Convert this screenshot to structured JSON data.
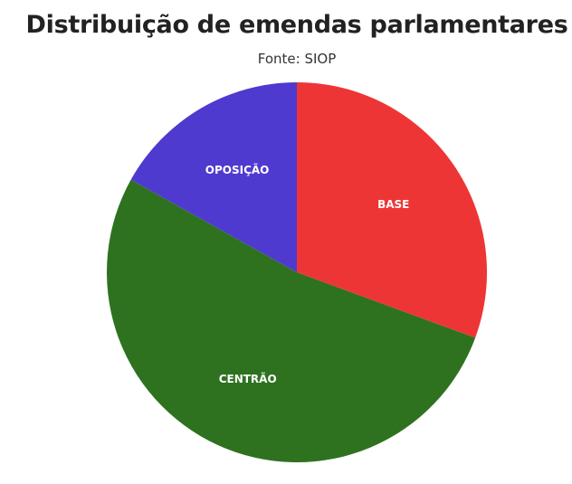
{
  "chart_data": {
    "type": "pie",
    "title": "Distribuição de emendas parlamentares",
    "subtitle": "Fonte: SIOP",
    "categories": [
      "BASE",
      "CENTRÃO",
      "OPOSIÇÃO"
    ],
    "values": [
      30.6,
      52.5,
      16.9
    ],
    "colors": [
      "#EE3535",
      "#2E7220",
      "#4F3ACF"
    ],
    "start_angle_deg": 0,
    "direction": "clockwise",
    "legend": "none",
    "labels": "inside"
  }
}
